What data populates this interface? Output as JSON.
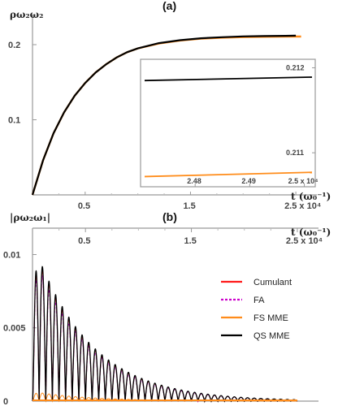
{
  "chart_data": [
    {
      "panel": "(a)",
      "type": "line",
      "ylabel": "ρω₂ω₂",
      "xlabel": "t (ω₀⁻¹)",
      "xlim": [
        0,
        2.7
      ],
      "ylim": [
        0,
        0.24
      ],
      "x_ticks": [
        "0.5",
        "1.5",
        "2.5 x 10⁴"
      ],
      "y_ticks": [
        "0.1",
        "0.2"
      ],
      "series": [
        {
          "color": "#000000",
          "x": [
            0,
            0.1,
            0.2,
            0.3,
            0.4,
            0.5,
            0.6,
            0.7,
            0.8,
            0.9,
            1.0,
            1.2,
            1.4,
            1.6,
            1.8,
            2.0,
            2.2,
            2.4,
            2.5
          ],
          "y": [
            0.0,
            0.046,
            0.082,
            0.11,
            0.132,
            0.149,
            0.163,
            0.174,
            0.183,
            0.19,
            0.195,
            0.202,
            0.206,
            0.2085,
            0.21,
            0.211,
            0.2115,
            0.2118,
            0.212
          ]
        },
        {
          "color": "#ff8c1a",
          "x": [
            0,
            0.1,
            0.2,
            0.3,
            0.4,
            0.5,
            0.6,
            0.7,
            0.8,
            0.9,
            1.0,
            1.2,
            1.4,
            1.6,
            1.8,
            2.0,
            2.2,
            2.4,
            2.55
          ],
          "y": [
            0.0,
            0.046,
            0.082,
            0.11,
            0.132,
            0.149,
            0.163,
            0.174,
            0.183,
            0.19,
            0.195,
            0.2015,
            0.2055,
            0.208,
            0.2093,
            0.2101,
            0.2105,
            0.2107,
            0.2108
          ]
        }
      ],
      "inset": {
        "xlim": [
          2.47,
          2.502
        ],
        "ylim": [
          0.2106,
          0.2121
        ],
        "x_ticks": [
          "2.48",
          "2.49",
          "2.5 x 10⁴"
        ],
        "y_ticks": [
          "0.211",
          "0.212"
        ],
        "series": [
          {
            "color": "#000000",
            "x": [
              2.47,
              2.5
            ],
            "y": [
              0.21185,
              0.21189
            ]
          },
          {
            "color": "#ff8c1a",
            "x": [
              2.47,
              2.5
            ],
            "y": [
              0.21072,
              0.21077
            ]
          }
        ]
      }
    },
    {
      "panel": "(b)",
      "type": "line",
      "ylabel": "|ρω₂ω₁|",
      "xlabel": "t (ω₀⁻¹)",
      "xlim": [
        0,
        2.7
      ],
      "ylim": [
        0,
        0.0118
      ],
      "x_ticks": [
        "0.5",
        "1.5",
        "2.5 x 10⁴"
      ],
      "y_ticks": [
        "0",
        "0.005",
        "0.01"
      ],
      "legend_position": "right",
      "series": [
        {
          "name": "Cumulant",
          "color": "#ff1a1a"
        },
        {
          "name": "FA",
          "color": "#cc00cc",
          "dashed": true
        },
        {
          "name": "FS MME",
          "color": "#ff8c1a"
        },
        {
          "name": "QS MME",
          "color": "#000000"
        }
      ],
      "oscillation": {
        "peak_amplitude": 0.011,
        "num_peaks": 40,
        "decay_end": 2.5
      }
    }
  ]
}
